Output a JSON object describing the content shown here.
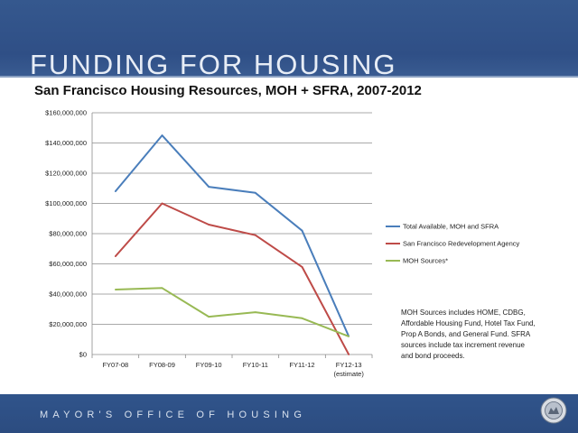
{
  "header": {
    "title": "FUNDING FOR HOUSING"
  },
  "footer": {
    "text": "MAYOR'S OFFICE OF HOUSING"
  },
  "note": {
    "text": "MOH Sources includes HOME, CDBG, Affordable Housing Fund, Hotel Tax Fund, Prop A Bonds, and General Fund.  SFRA sources include tax increment revenue and bond proceeds."
  },
  "colors": {
    "band": "#2f4f86",
    "grid": "#8c8c8c"
  },
  "chart_data": {
    "type": "line",
    "title": "San Francisco Housing Resources, MOH + SFRA, 2007-2012",
    "categories": [
      "FY07-08",
      "FY08-09",
      "FY09-10",
      "FY10-11",
      "FY11-12",
      "FY12-13\n(estimate)"
    ],
    "ylim": [
      0,
      160000000
    ],
    "yticks": [
      0,
      20000000,
      40000000,
      60000000,
      80000000,
      100000000,
      120000000,
      140000000,
      160000000
    ],
    "ytick_labels": [
      "$0",
      "$20,000,000",
      "$40,000,000",
      "$60,000,000",
      "$80,000,000",
      "$100,000,000",
      "$120,000,000",
      "$140,000,000",
      "$160,000,000"
    ],
    "grid": true,
    "legend_position": "right",
    "series": [
      {
        "name": "Total Available, MOH and SFRA",
        "color": "#4a7ebb",
        "values": [
          108000000,
          145000000,
          111000000,
          107000000,
          82000000,
          12000000
        ]
      },
      {
        "name": "San Francisco Redevelopment Agency",
        "color": "#be4b48",
        "values": [
          65000000,
          100000000,
          86000000,
          79000000,
          58000000,
          0
        ]
      },
      {
        "name": "MOH Sources*",
        "color": "#98b954",
        "values": [
          43000000,
          44000000,
          25000000,
          28000000,
          24000000,
          12000000
        ]
      }
    ]
  }
}
